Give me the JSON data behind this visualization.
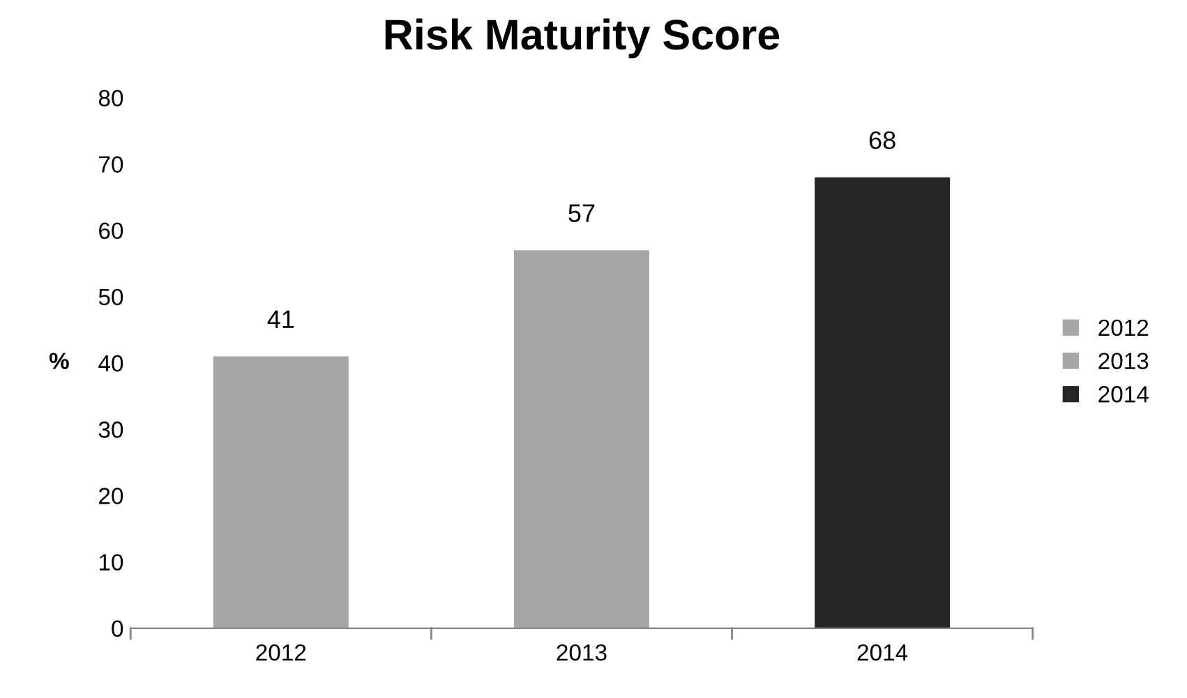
{
  "chart_data": {
    "type": "bar",
    "title": "Risk Maturity Score",
    "ylabel": "%",
    "categories": [
      "2012",
      "2013",
      "2014"
    ],
    "series": [
      {
        "name": "2012",
        "color": "#a6a6a6",
        "values": [
          41,
          null,
          null
        ]
      },
      {
        "name": "2013",
        "color": "#a6a6a6",
        "values": [
          null,
          57,
          null
        ]
      },
      {
        "name": "2014",
        "color": "#262626",
        "values": [
          null,
          null,
          68
        ]
      }
    ],
    "ylim": [
      0,
      80
    ],
    "yticks": [
      0,
      10,
      20,
      30,
      40,
      50,
      60,
      70,
      80
    ],
    "data_labels": true,
    "grid": false,
    "legend": "right"
  }
}
